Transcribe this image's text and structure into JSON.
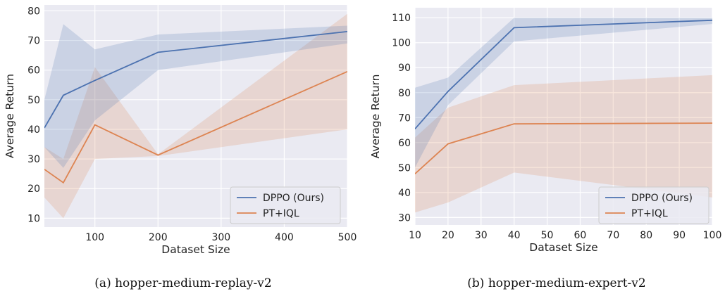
{
  "colors": {
    "series_0": "#4c72b0",
    "series_1": "#dd8452",
    "plot_bg": "#eaeaf2",
    "grid": "#ffffff"
  },
  "chart_data": [
    {
      "type": "line",
      "caption": "(a) hopper-medium-replay-v2",
      "xlabel": "Dataset Size",
      "ylabel": "Average Return",
      "xlim": [
        20,
        500
      ],
      "ylim": [
        7,
        82
      ],
      "xticks": [
        100,
        200,
        300,
        400,
        500
      ],
      "yticks": [
        10,
        20,
        30,
        40,
        50,
        60,
        70,
        80
      ],
      "grid": true,
      "legend_position": "bottom-right",
      "series": [
        {
          "name": "DPPO (Ours)",
          "color": "#4c72b0",
          "x": [
            20,
            50,
            100,
            200,
            500
          ],
          "y": [
            40.5,
            51.5,
            56.5,
            66,
            73
          ],
          "upper": [
            50,
            75.5,
            67,
            72,
            75
          ],
          "lower": [
            34,
            27,
            43,
            60,
            69
          ]
        },
        {
          "name": "PT+IQL",
          "color": "#dd8452",
          "x": [
            20,
            50,
            100,
            200,
            500
          ],
          "y": [
            26.5,
            22,
            41.5,
            31.3,
            59.5
          ],
          "upper": [
            34,
            30,
            61,
            31.6,
            79
          ],
          "lower": [
            17,
            10,
            30,
            31,
            40
          ]
        }
      ]
    },
    {
      "type": "line",
      "caption": "(b) hopper-medium-expert-v2",
      "xlabel": "Dataset Size",
      "ylabel": "Average Return",
      "xlim": [
        10,
        100
      ],
      "ylim": [
        27,
        114
      ],
      "xticks": [
        10,
        20,
        30,
        40,
        50,
        60,
        70,
        80,
        90,
        100
      ],
      "yticks": [
        30,
        40,
        50,
        60,
        70,
        80,
        90,
        100,
        110
      ],
      "grid": true,
      "legend_position": "bottom-right",
      "series": [
        {
          "name": "DPPO (Ours)",
          "color": "#4c72b0",
          "x": [
            10,
            20,
            40,
            100
          ],
          "y": [
            65.5,
            80.5,
            106,
            109
          ],
          "upper": [
            82,
            86,
            110,
            110
          ],
          "lower": [
            50,
            75,
            100.5,
            107.5
          ]
        },
        {
          "name": "PT+IQL",
          "color": "#dd8452",
          "x": [
            10,
            20,
            40,
            100
          ],
          "y": [
            47.5,
            59.5,
            67.5,
            67.8
          ],
          "upper": [
            62,
            74,
            83,
            87
          ],
          "lower": [
            32,
            36,
            48,
            38
          ]
        }
      ]
    }
  ]
}
